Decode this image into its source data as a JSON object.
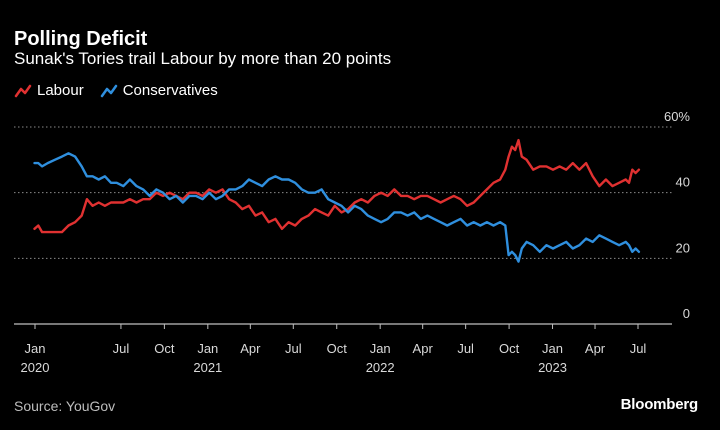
{
  "header": {
    "title": "Polling Deficit",
    "subtitle": "Sunak's Tories trail Labour by more than 20 points"
  },
  "footer": {
    "source": "Source: YouGov",
    "brand": "Bloomberg"
  },
  "colors": {
    "background": "#000000",
    "labour": "#e03131",
    "conservatives": "#2f8fde",
    "grid": "#8a8a8a",
    "axis": "#bfbfbf"
  },
  "chart_data": {
    "type": "line",
    "title": "Polling Deficit",
    "subtitle": "Sunak's Tories trail Labour by more than 20 points",
    "ylim": [
      0,
      60
    ],
    "y_ticks": [
      {
        "value": 60,
        "label": "60%"
      },
      {
        "value": 40,
        "label": "40"
      },
      {
        "value": 20,
        "label": "20"
      },
      {
        "value": 0,
        "label": "0"
      }
    ],
    "grid": true,
    "legend_position": "top-left",
    "x_ticks": [
      {
        "date": "2020-01-01",
        "month": "Jan",
        "year": "2020"
      },
      {
        "date": "2020-07-01",
        "month": "Jul",
        "year": ""
      },
      {
        "date": "2020-10-01",
        "month": "Oct",
        "year": ""
      },
      {
        "date": "2021-01-01",
        "month": "Jan",
        "year": "2021"
      },
      {
        "date": "2021-04-01",
        "month": "Apr",
        "year": ""
      },
      {
        "date": "2021-07-01",
        "month": "Jul",
        "year": ""
      },
      {
        "date": "2021-10-01",
        "month": "Oct",
        "year": ""
      },
      {
        "date": "2022-01-01",
        "month": "Jan",
        "year": "2022"
      },
      {
        "date": "2022-04-01",
        "month": "Apr",
        "year": ""
      },
      {
        "date": "2022-07-01",
        "month": "Jul",
        "year": ""
      },
      {
        "date": "2022-10-01",
        "month": "Oct",
        "year": ""
      },
      {
        "date": "2023-01-01",
        "month": "Jan",
        "year": "2023"
      },
      {
        "date": "2023-04-01",
        "month": "Apr",
        "year": ""
      },
      {
        "date": "2023-07-01",
        "month": "Jul",
        "year": ""
      }
    ],
    "series": [
      {
        "name": "Labour",
        "color": "#e03131",
        "points": [
          [
            "2019-12-31",
            29
          ],
          [
            "2020-01-08",
            30
          ],
          [
            "2020-01-16",
            28
          ],
          [
            "2020-01-28",
            28
          ],
          [
            "2020-02-12",
            28
          ],
          [
            "2020-02-27",
            28
          ],
          [
            "2020-03-12",
            30
          ],
          [
            "2020-03-26",
            31
          ],
          [
            "2020-04-09",
            33
          ],
          [
            "2020-04-20",
            38
          ],
          [
            "2020-05-02",
            36
          ],
          [
            "2020-05-15",
            37
          ],
          [
            "2020-05-28",
            36
          ],
          [
            "2020-06-10",
            37
          ],
          [
            "2020-06-22",
            37
          ],
          [
            "2020-07-06",
            37
          ],
          [
            "2020-07-20",
            38
          ],
          [
            "2020-08-03",
            37
          ],
          [
            "2020-08-17",
            38
          ],
          [
            "2020-08-31",
            38
          ],
          [
            "2020-09-14",
            40
          ],
          [
            "2020-09-28",
            39
          ],
          [
            "2020-10-12",
            40
          ],
          [
            "2020-10-26",
            39
          ],
          [
            "2020-11-09",
            38
          ],
          [
            "2020-11-23",
            40
          ],
          [
            "2020-12-07",
            40
          ],
          [
            "2020-12-21",
            39
          ],
          [
            "2021-01-04",
            41
          ],
          [
            "2021-01-18",
            40
          ],
          [
            "2021-02-01",
            41
          ],
          [
            "2021-02-15",
            38
          ],
          [
            "2021-03-01",
            37
          ],
          [
            "2021-03-15",
            35
          ],
          [
            "2021-03-29",
            36
          ],
          [
            "2021-04-12",
            33
          ],
          [
            "2021-04-26",
            34
          ],
          [
            "2021-05-10",
            31
          ],
          [
            "2021-05-24",
            32
          ],
          [
            "2021-06-07",
            29
          ],
          [
            "2021-06-21",
            31
          ],
          [
            "2021-07-05",
            30
          ],
          [
            "2021-07-19",
            32
          ],
          [
            "2021-08-02",
            33
          ],
          [
            "2021-08-16",
            35
          ],
          [
            "2021-08-30",
            34
          ],
          [
            "2021-09-13",
            33
          ],
          [
            "2021-09-27",
            36
          ],
          [
            "2021-10-11",
            34
          ],
          [
            "2021-10-25",
            35
          ],
          [
            "2021-11-08",
            37
          ],
          [
            "2021-11-22",
            38
          ],
          [
            "2021-12-06",
            37
          ],
          [
            "2021-12-20",
            39
          ],
          [
            "2022-01-03",
            40
          ],
          [
            "2022-01-17",
            39
          ],
          [
            "2022-01-31",
            41
          ],
          [
            "2022-02-14",
            39
          ],
          [
            "2022-02-28",
            39
          ],
          [
            "2022-03-14",
            38
          ],
          [
            "2022-03-28",
            39
          ],
          [
            "2022-04-11",
            39
          ],
          [
            "2022-04-25",
            38
          ],
          [
            "2022-05-09",
            37
          ],
          [
            "2022-05-23",
            38
          ],
          [
            "2022-06-06",
            39
          ],
          [
            "2022-06-20",
            38
          ],
          [
            "2022-07-04",
            36
          ],
          [
            "2022-07-18",
            37
          ],
          [
            "2022-08-01",
            39
          ],
          [
            "2022-08-15",
            41
          ],
          [
            "2022-08-29",
            43
          ],
          [
            "2022-09-12",
            44
          ],
          [
            "2022-09-23",
            47
          ],
          [
            "2022-09-30",
            51
          ],
          [
            "2022-10-07",
            54
          ],
          [
            "2022-10-14",
            53
          ],
          [
            "2022-10-21",
            56
          ],
          [
            "2022-10-28",
            51
          ],
          [
            "2022-11-07",
            50
          ],
          [
            "2022-11-21",
            47
          ],
          [
            "2022-12-05",
            48
          ],
          [
            "2022-12-19",
            48
          ],
          [
            "2023-01-02",
            47
          ],
          [
            "2023-01-16",
            48
          ],
          [
            "2023-01-30",
            47
          ],
          [
            "2023-02-13",
            49
          ],
          [
            "2023-02-27",
            47
          ],
          [
            "2023-03-13",
            49
          ],
          [
            "2023-03-27",
            45
          ],
          [
            "2023-04-10",
            42
          ],
          [
            "2023-04-24",
            44
          ],
          [
            "2023-05-08",
            42
          ],
          [
            "2023-05-22",
            43
          ],
          [
            "2023-06-05",
            44
          ],
          [
            "2023-06-12",
            43
          ],
          [
            "2023-06-19",
            47
          ],
          [
            "2023-06-26",
            46
          ],
          [
            "2023-07-03",
            47
          ]
        ]
      },
      {
        "name": "Conservatives",
        "color": "#2f8fde",
        "points": [
          [
            "2019-12-31",
            49
          ],
          [
            "2020-01-08",
            49
          ],
          [
            "2020-01-16",
            48
          ],
          [
            "2020-01-28",
            49
          ],
          [
            "2020-02-12",
            50
          ],
          [
            "2020-02-27",
            51
          ],
          [
            "2020-03-12",
            52
          ],
          [
            "2020-03-26",
            51
          ],
          [
            "2020-04-09",
            48
          ],
          [
            "2020-04-20",
            45
          ],
          [
            "2020-05-02",
            45
          ],
          [
            "2020-05-15",
            44
          ],
          [
            "2020-05-28",
            45
          ],
          [
            "2020-06-10",
            43
          ],
          [
            "2020-06-22",
            43
          ],
          [
            "2020-07-06",
            42
          ],
          [
            "2020-07-20",
            44
          ],
          [
            "2020-08-03",
            42
          ],
          [
            "2020-08-17",
            41
          ],
          [
            "2020-08-31",
            39
          ],
          [
            "2020-09-14",
            41
          ],
          [
            "2020-09-28",
            40
          ],
          [
            "2020-10-12",
            38
          ],
          [
            "2020-10-26",
            39
          ],
          [
            "2020-11-09",
            37
          ],
          [
            "2020-11-23",
            39
          ],
          [
            "2020-12-07",
            39
          ],
          [
            "2020-12-21",
            38
          ],
          [
            "2021-01-04",
            40
          ],
          [
            "2021-01-18",
            38
          ],
          [
            "2021-02-01",
            39
          ],
          [
            "2021-02-15",
            41
          ],
          [
            "2021-03-01",
            41
          ],
          [
            "2021-03-15",
            42
          ],
          [
            "2021-03-29",
            44
          ],
          [
            "2021-04-12",
            43
          ],
          [
            "2021-04-26",
            42
          ],
          [
            "2021-05-10",
            44
          ],
          [
            "2021-05-24",
            45
          ],
          [
            "2021-06-07",
            44
          ],
          [
            "2021-06-21",
            44
          ],
          [
            "2021-07-05",
            43
          ],
          [
            "2021-07-19",
            41
          ],
          [
            "2021-08-02",
            40
          ],
          [
            "2021-08-16",
            40
          ],
          [
            "2021-08-30",
            41
          ],
          [
            "2021-09-13",
            38
          ],
          [
            "2021-09-27",
            37
          ],
          [
            "2021-10-11",
            36
          ],
          [
            "2021-10-25",
            34
          ],
          [
            "2021-11-08",
            36
          ],
          [
            "2021-11-22",
            35
          ],
          [
            "2021-12-06",
            33
          ],
          [
            "2021-12-20",
            32
          ],
          [
            "2022-01-03",
            31
          ],
          [
            "2022-01-17",
            32
          ],
          [
            "2022-01-31",
            34
          ],
          [
            "2022-02-14",
            34
          ],
          [
            "2022-02-28",
            33
          ],
          [
            "2022-03-14",
            34
          ],
          [
            "2022-03-28",
            32
          ],
          [
            "2022-04-11",
            33
          ],
          [
            "2022-04-25",
            32
          ],
          [
            "2022-05-09",
            31
          ],
          [
            "2022-05-23",
            30
          ],
          [
            "2022-06-06",
            31
          ],
          [
            "2022-06-20",
            32
          ],
          [
            "2022-07-04",
            30
          ],
          [
            "2022-07-18",
            31
          ],
          [
            "2022-08-01",
            30
          ],
          [
            "2022-08-15",
            31
          ],
          [
            "2022-08-29",
            30
          ],
          [
            "2022-09-12",
            31
          ],
          [
            "2022-09-23",
            30
          ],
          [
            "2022-09-30",
            21
          ],
          [
            "2022-10-07",
            22
          ],
          [
            "2022-10-14",
            21
          ],
          [
            "2022-10-21",
            19
          ],
          [
            "2022-10-28",
            23
          ],
          [
            "2022-11-07",
            25
          ],
          [
            "2022-11-21",
            24
          ],
          [
            "2022-12-05",
            22
          ],
          [
            "2022-12-19",
            24
          ],
          [
            "2023-01-02",
            23
          ],
          [
            "2023-01-16",
            24
          ],
          [
            "2023-01-30",
            25
          ],
          [
            "2023-02-13",
            23
          ],
          [
            "2023-02-27",
            24
          ],
          [
            "2023-03-13",
            26
          ],
          [
            "2023-03-27",
            25
          ],
          [
            "2023-04-10",
            27
          ],
          [
            "2023-04-24",
            26
          ],
          [
            "2023-05-08",
            25
          ],
          [
            "2023-05-22",
            24
          ],
          [
            "2023-06-05",
            25
          ],
          [
            "2023-06-12",
            24
          ],
          [
            "2023-06-19",
            22
          ],
          [
            "2023-06-26",
            23
          ],
          [
            "2023-07-03",
            22
          ]
        ]
      }
    ]
  }
}
